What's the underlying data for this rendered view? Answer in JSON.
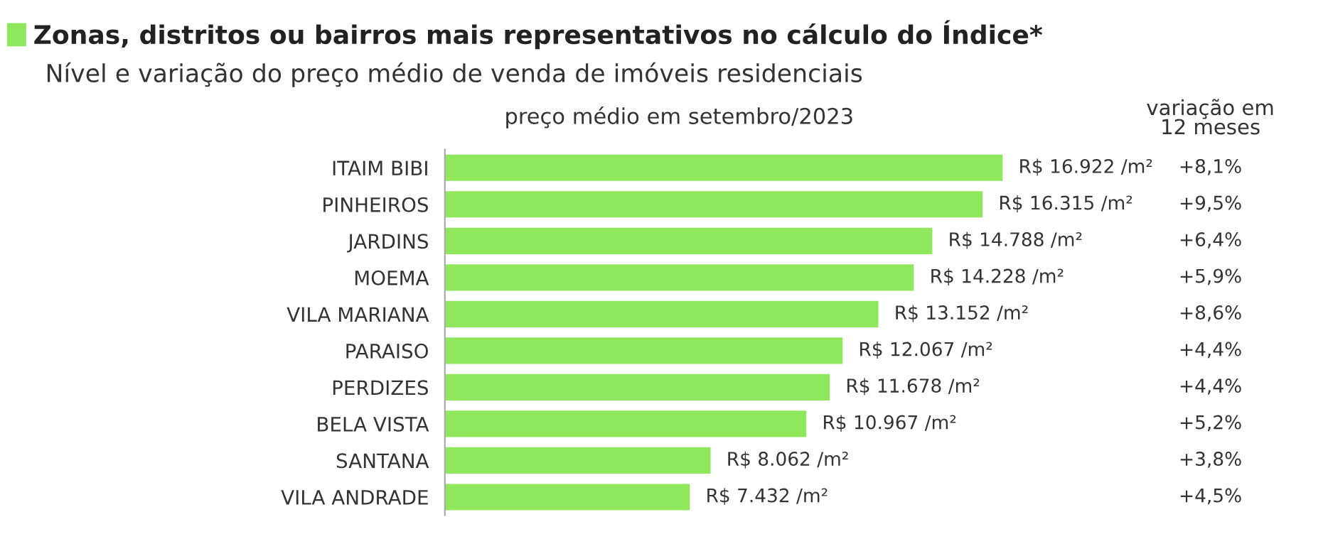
{
  "chart_data": {
    "type": "bar",
    "orientation": "horizontal",
    "title": "Zonas, distritos ou bairros mais representativos no cálculo do Índice*",
    "subtitle": "Nível e variação do preço médio de venda de imóveis residenciais",
    "xlabel": "preço médio em setembro/2023",
    "categories": [
      "ITAIM BIBI",
      "PINHEIROS",
      "JARDINS",
      "MOEMA",
      "VILA MARIANA",
      "PARAISO",
      "PERDIZES",
      "BELA VISTA",
      "SANTANA",
      "VILA ANDRADE"
    ],
    "values": [
      16922,
      16315,
      14788,
      14228,
      13152,
      12067,
      11678,
      10967,
      8062,
      7432
    ],
    "value_labels": [
      "R$ 16.922 /m²",
      "R$ 16.315 /m²",
      "R$ 14.788 /m²",
      "R$ 14.228 /m²",
      "R$ 13.152 /m²",
      "R$ 12.067 /m²",
      "R$ 11.678 /m²",
      "R$ 10.967 /m²",
      "R$ 8.062 /m²",
      "R$ 7.432 /m²"
    ],
    "color": "#8fe85c",
    "annotations": [
      "variação em\n12 meses",
      "+8,1%",
      "+9,5%",
      "+6,4%",
      "+5,9%",
      "+8,6%",
      "+4,4%",
      "+4,4%",
      "+5,2%",
      "+3,8%",
      "+4,5%"
    ],
    "grid": false,
    "legend": false
  }
}
